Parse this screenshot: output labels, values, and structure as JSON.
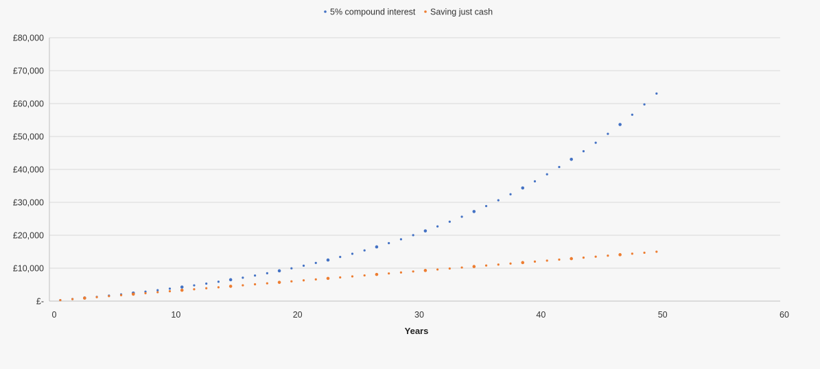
{
  "chart_data": {
    "type": "scatter",
    "title": "",
    "xlabel": "Years",
    "ylabel": "",
    "xlim": [
      0,
      60
    ],
    "ylim": [
      0,
      80000
    ],
    "x_ticks": [
      "0",
      "10",
      "20",
      "30",
      "40",
      "50",
      "60"
    ],
    "y_ticks": [
      "£-",
      "£10,000",
      "£20,000",
      "£30,000",
      "£40,000",
      "£50,000",
      "£60,000",
      "£70,000",
      "£80,000"
    ],
    "grid": true,
    "legend_position": "top",
    "series": [
      {
        "name": "5% compound interest",
        "color": "#4472c4",
        "x": [
          1,
          2,
          3,
          4,
          5,
          6,
          7,
          8,
          9,
          10,
          11,
          12,
          13,
          14,
          15,
          16,
          17,
          18,
          19,
          20,
          21,
          22,
          23,
          24,
          25,
          26,
          27,
          28,
          29,
          30,
          31,
          32,
          33,
          34,
          35,
          36,
          37,
          38,
          39,
          40,
          41,
          42,
          43,
          44,
          45,
          46,
          47,
          48,
          49,
          50
        ],
        "values": [
          300,
          620,
          950,
          1290,
          1660,
          2040,
          2440,
          2860,
          3310,
          3770,
          4260,
          4780,
          5320,
          5890,
          6490,
          7110,
          7770,
          8470,
          9200,
          9960,
          10760,
          11600,
          12480,
          13410,
          14380,
          15400,
          16470,
          17600,
          18780,
          20020,
          21320,
          22690,
          24120,
          25630,
          27210,
          28870,
          30620,
          32450,
          34370,
          36390,
          38510,
          40730,
          43070,
          45520,
          48100,
          50800,
          53640,
          56620,
          59750,
          63040
        ]
      },
      {
        "name": "Saving just cash",
        "color": "#ed7d31",
        "x": [
          1,
          2,
          3,
          4,
          5,
          6,
          7,
          8,
          9,
          10,
          11,
          12,
          13,
          14,
          15,
          16,
          17,
          18,
          19,
          20,
          21,
          22,
          23,
          24,
          25,
          26,
          27,
          28,
          29,
          30,
          31,
          32,
          33,
          34,
          35,
          36,
          37,
          38,
          39,
          40,
          41,
          42,
          43,
          44,
          45,
          46,
          47,
          48,
          49,
          50
        ],
        "values": [
          300,
          600,
          900,
          1200,
          1500,
          1800,
          2100,
          2400,
          2700,
          3000,
          3300,
          3600,
          3900,
          4200,
          4500,
          4800,
          5100,
          5400,
          5700,
          6000,
          6300,
          6600,
          6900,
          7200,
          7500,
          7800,
          8100,
          8400,
          8700,
          9000,
          9300,
          9600,
          9900,
          10200,
          10500,
          10800,
          11100,
          11400,
          11700,
          12000,
          12300,
          12600,
          12900,
          13200,
          13500,
          13800,
          14100,
          14400,
          14700,
          15000
        ]
      }
    ]
  }
}
